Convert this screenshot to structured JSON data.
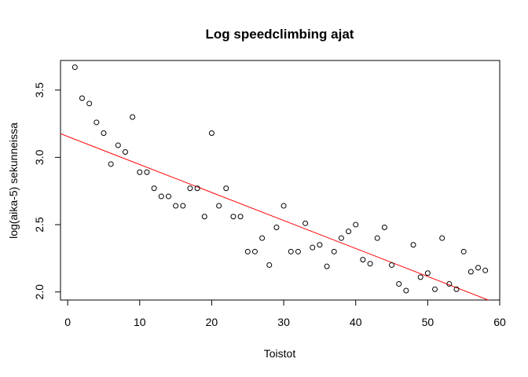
{
  "chart_data": {
    "type": "scatter",
    "title": "Log speedclimbing ajat",
    "xlabel": "Toistot",
    "ylabel": "log(aika-5) sekunneissa",
    "xlim": [
      -1,
      60
    ],
    "ylim": [
      1.94,
      3.72
    ],
    "x_ticks": [
      0,
      10,
      20,
      30,
      40,
      50,
      60
    ],
    "x_tick_labels": [
      "0",
      "10",
      "20",
      "30",
      "40",
      "50",
      "60"
    ],
    "y_ticks": [
      2.0,
      2.5,
      3.0,
      3.5
    ],
    "y_tick_labels": [
      "2.0",
      "2.5",
      "3.0",
      "3.5"
    ],
    "grid": false,
    "legend": "none",
    "point_color": "#000000",
    "line_color": "#ff0000",
    "points": [
      {
        "x": 1,
        "y": 3.67
      },
      {
        "x": 2,
        "y": 3.44
      },
      {
        "x": 3,
        "y": 3.4
      },
      {
        "x": 4,
        "y": 3.26
      },
      {
        "x": 5,
        "y": 3.18
      },
      {
        "x": 6,
        "y": 2.95
      },
      {
        "x": 7,
        "y": 3.09
      },
      {
        "x": 8,
        "y": 3.04
      },
      {
        "x": 9,
        "y": 3.3
      },
      {
        "x": 10,
        "y": 2.89
      },
      {
        "x": 11,
        "y": 2.89
      },
      {
        "x": 12,
        "y": 2.77
      },
      {
        "x": 13,
        "y": 2.71
      },
      {
        "x": 14,
        "y": 2.71
      },
      {
        "x": 15,
        "y": 2.64
      },
      {
        "x": 16,
        "y": 2.64
      },
      {
        "x": 17,
        "y": 2.77
      },
      {
        "x": 18,
        "y": 2.77
      },
      {
        "x": 19,
        "y": 2.56
      },
      {
        "x": 20,
        "y": 3.18
      },
      {
        "x": 21,
        "y": 2.64
      },
      {
        "x": 22,
        "y": 2.77
      },
      {
        "x": 23,
        "y": 2.56
      },
      {
        "x": 24,
        "y": 2.56
      },
      {
        "x": 25,
        "y": 2.3
      },
      {
        "x": 26,
        "y": 2.3
      },
      {
        "x": 27,
        "y": 2.4
      },
      {
        "x": 28,
        "y": 2.2
      },
      {
        "x": 29,
        "y": 2.48
      },
      {
        "x": 30,
        "y": 2.64
      },
      {
        "x": 31,
        "y": 2.3
      },
      {
        "x": 32,
        "y": 2.3
      },
      {
        "x": 33,
        "y": 2.51
      },
      {
        "x": 34,
        "y": 2.33
      },
      {
        "x": 35,
        "y": 2.35
      },
      {
        "x": 36,
        "y": 2.19
      },
      {
        "x": 37,
        "y": 2.3
      },
      {
        "x": 38,
        "y": 2.4
      },
      {
        "x": 39,
        "y": 2.45
      },
      {
        "x": 40,
        "y": 2.5
      },
      {
        "x": 41,
        "y": 2.24
      },
      {
        "x": 42,
        "y": 2.21
      },
      {
        "x": 43,
        "y": 2.4
      },
      {
        "x": 44,
        "y": 2.48
      },
      {
        "x": 45,
        "y": 2.2
      },
      {
        "x": 46,
        "y": 2.06
      },
      {
        "x": 47,
        "y": 2.01
      },
      {
        "x": 48,
        "y": 2.35
      },
      {
        "x": 49,
        "y": 2.11
      },
      {
        "x": 50,
        "y": 2.14
      },
      {
        "x": 51,
        "y": 2.02
      },
      {
        "x": 52,
        "y": 2.4
      },
      {
        "x": 53,
        "y": 2.06
      },
      {
        "x": 54,
        "y": 2.02
      },
      {
        "x": 55,
        "y": 2.3
      },
      {
        "x": 56,
        "y": 2.15
      },
      {
        "x": 57,
        "y": 2.18
      },
      {
        "x": 58,
        "y": 2.16
      }
    ],
    "fit_line": {
      "intercept": 3.155,
      "slope": -0.0208
    }
  }
}
